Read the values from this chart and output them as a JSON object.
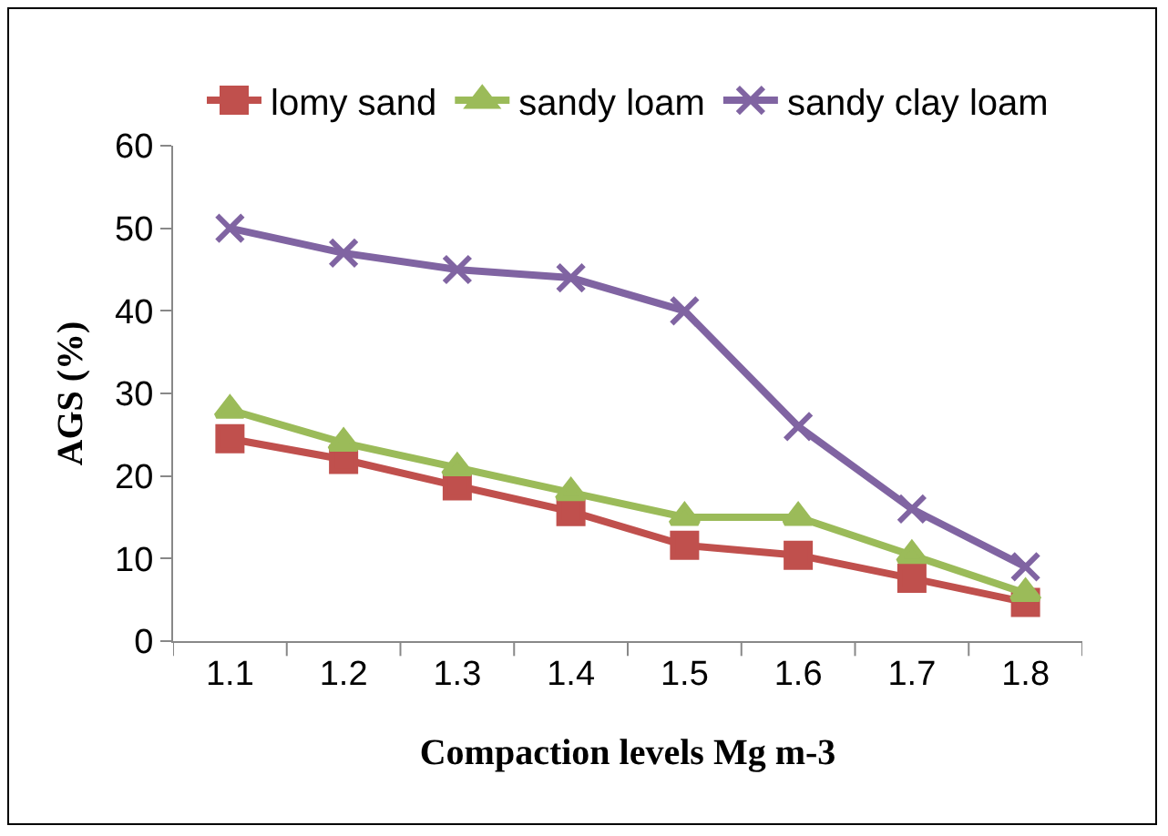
{
  "chart_data": {
    "type": "line",
    "xlabel": "Compaction levels Mg m-3",
    "ylabel": "AGS (%)",
    "categories": [
      "1.1",
      "1.2",
      "1.3",
      "1.4",
      "1.5",
      "1.6",
      "1.7",
      "1.8"
    ],
    "series": [
      {
        "name": "lomy sand",
        "color": "#c0504d",
        "marker": "square",
        "values": [
          24.5,
          22,
          18.8,
          15.7,
          11.6,
          10.4,
          7.6,
          4.7
        ]
      },
      {
        "name": "sandy loam",
        "color": "#9bbb59",
        "marker": "triangle",
        "values": [
          28,
          24,
          21,
          18,
          15,
          15,
          10.4,
          5.8
        ]
      },
      {
        "name": "sandy clay loam",
        "color": "#8064a2",
        "marker": "cross",
        "values": [
          50,
          47,
          45,
          44,
          40,
          26,
          16,
          9
        ]
      }
    ],
    "ylim": [
      0,
      60
    ],
    "yticks": [
      0,
      10,
      20,
      30,
      40,
      50,
      60
    ],
    "grid": false,
    "legend": "top"
  }
}
